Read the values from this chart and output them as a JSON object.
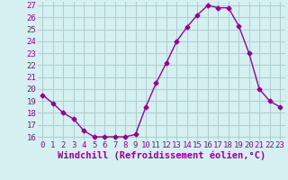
{
  "x": [
    0,
    1,
    2,
    3,
    4,
    5,
    6,
    7,
    8,
    9,
    10,
    11,
    12,
    13,
    14,
    15,
    16,
    17,
    18,
    19,
    20,
    21,
    22,
    23
  ],
  "y": [
    19.5,
    18.8,
    18.0,
    17.5,
    16.5,
    16.0,
    16.0,
    16.0,
    16.0,
    16.2,
    18.5,
    20.5,
    22.2,
    24.0,
    25.2,
    26.2,
    27.0,
    26.8,
    26.8,
    25.3,
    23.0,
    20.0,
    19.0,
    18.5
  ],
  "xlabel": "Windchill (Refroidissement éolien,°C)",
  "ylim_min": 15.7,
  "ylim_max": 27.3,
  "xlim_min": -0.5,
  "xlim_max": 23.5,
  "yticks": [
    16,
    17,
    18,
    19,
    20,
    21,
    22,
    23,
    24,
    25,
    26,
    27
  ],
  "xticks": [
    0,
    1,
    2,
    3,
    4,
    5,
    6,
    7,
    8,
    9,
    10,
    11,
    12,
    13,
    14,
    15,
    16,
    17,
    18,
    19,
    20,
    21,
    22,
    23
  ],
  "line_color": "#990099",
  "marker": "D",
  "marker_size": 2.5,
  "bg_color": "#d4f0f0",
  "grid_color": "#b0d0d0",
  "tick_label_fontsize": 6.5,
  "xlabel_fontsize": 7.5,
  "linewidth": 1.0
}
